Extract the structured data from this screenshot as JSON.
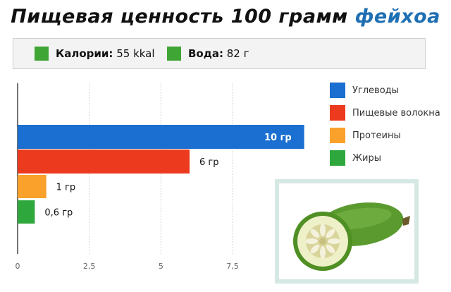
{
  "header": {
    "title_main": "Пищевая ценность 100 грамм",
    "title_accent": "фейхоа"
  },
  "summary": {
    "calories_label": "Калории:",
    "calories_value": "55 kkal",
    "water_label": "Вода:",
    "water_value": "82 г",
    "marker_color": "#3fa535"
  },
  "chart_data": {
    "type": "bar",
    "orientation": "horizontal",
    "categories": [
      "Углеводы",
      "Пищевые волокна",
      "Протеины",
      "Жиры"
    ],
    "values": [
      10,
      6,
      1,
      0.6
    ],
    "data_labels": [
      "10 гр",
      "6 гр",
      "1 гр",
      "0,6 гр"
    ],
    "colors": [
      "#1a6fd0",
      "#ec3a1e",
      "#f9a12b",
      "#2ea83c"
    ],
    "x_ticks": [
      0,
      2.5,
      5,
      7.5
    ],
    "x_tick_labels": [
      "0",
      "2,5",
      "5",
      "7,5"
    ],
    "xlim": [
      0,
      10.5
    ],
    "grid": true,
    "legend": "right"
  },
  "photo": {
    "icon": "feijoa-fruit-icon"
  }
}
